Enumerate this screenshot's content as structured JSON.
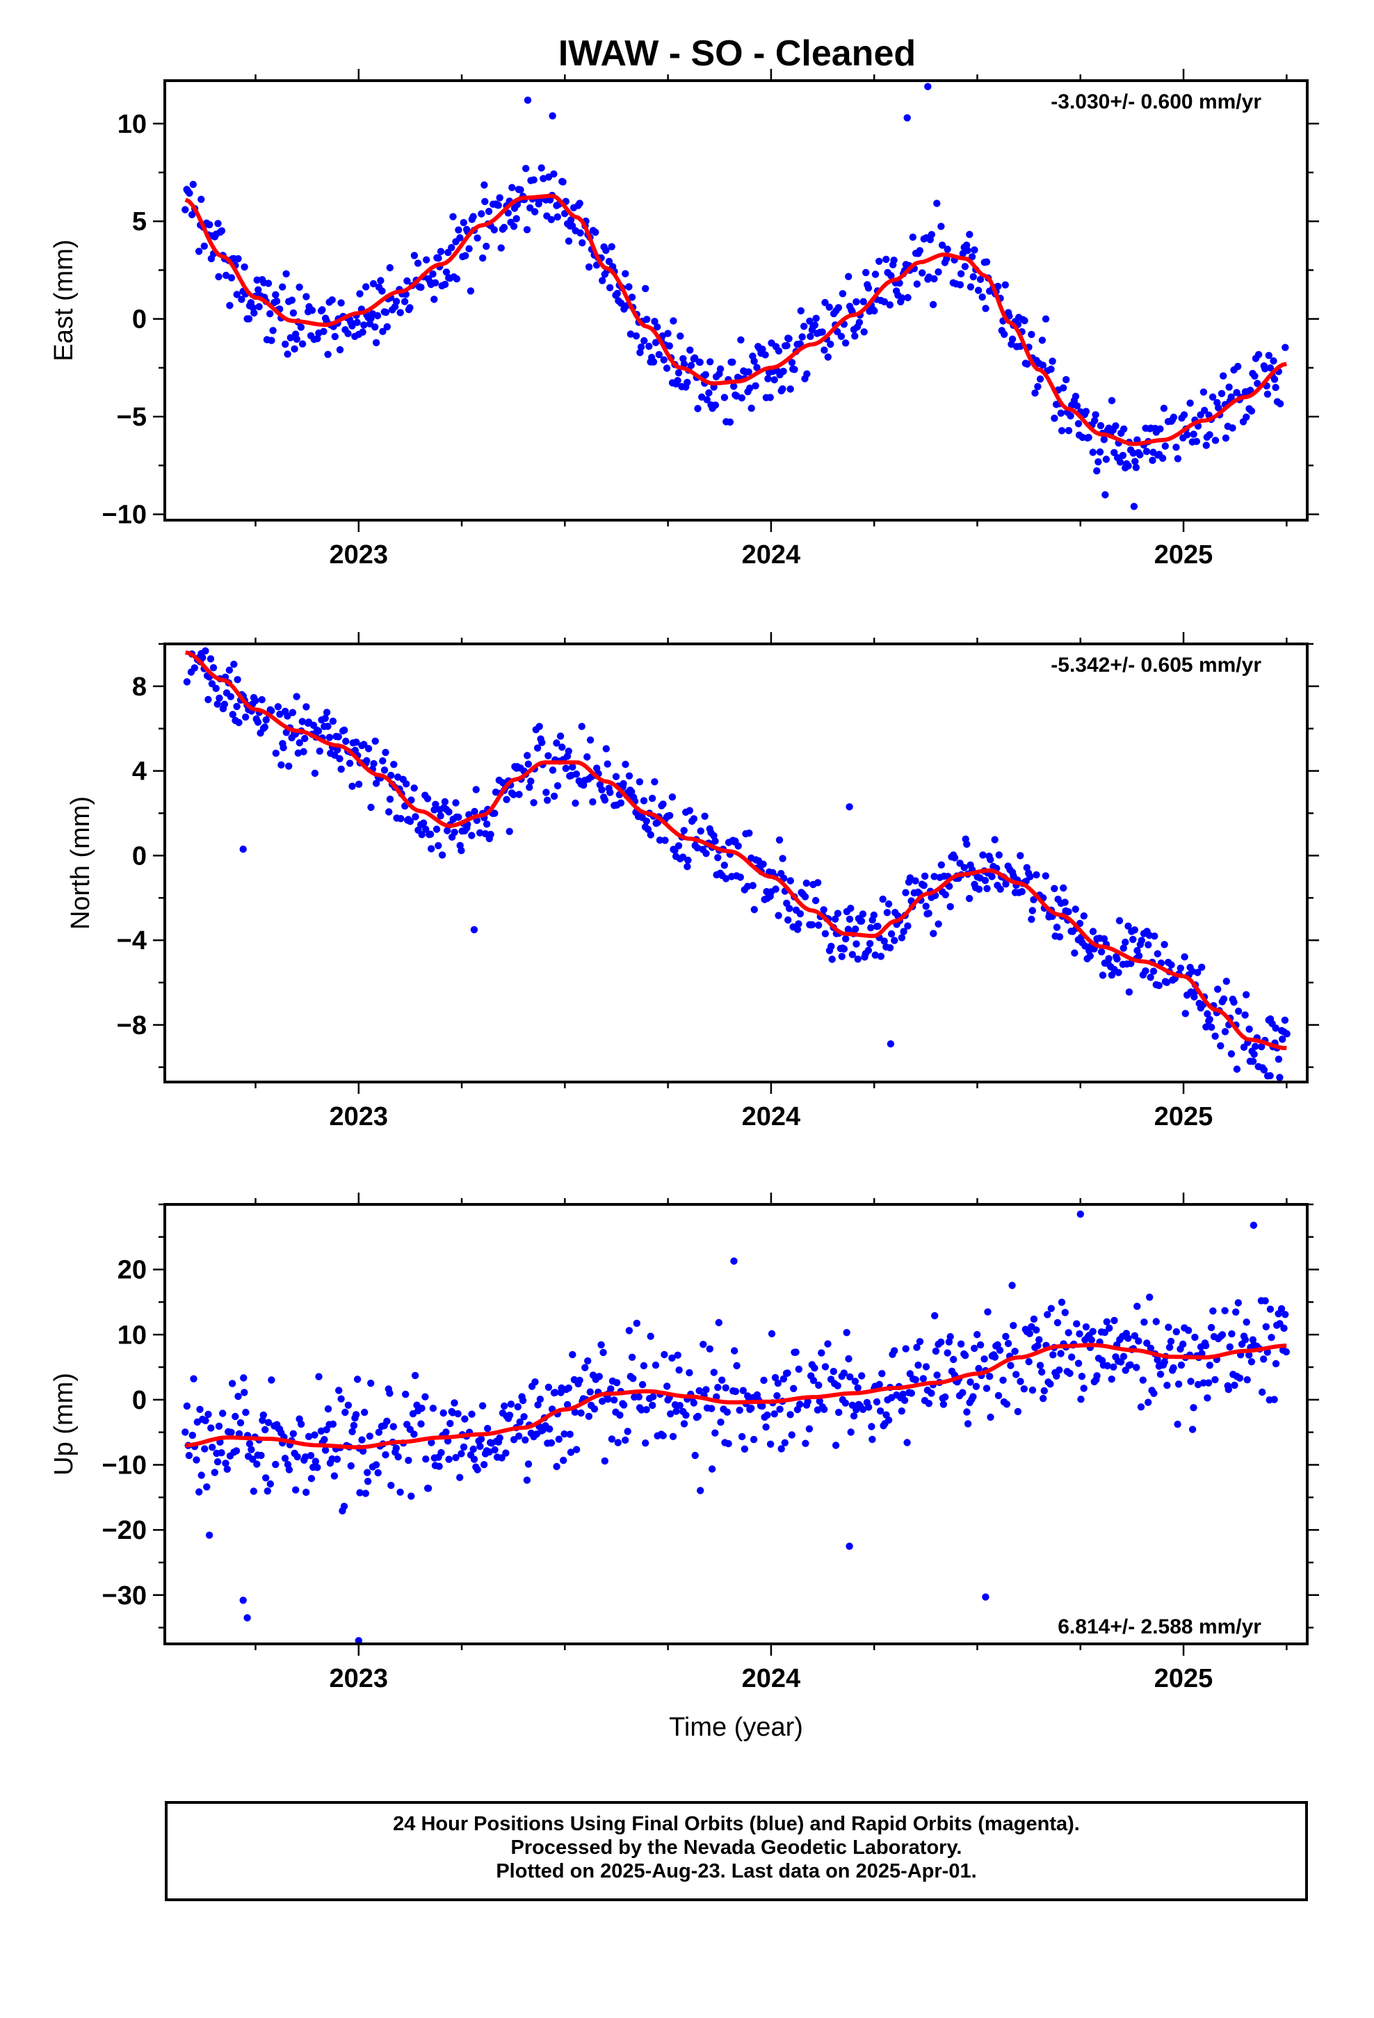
{
  "title": "IWAW  - SO - Cleaned",
  "footer": {
    "line1": "24 Hour Positions Using Final Orbits (blue) and Rapid Orbits (magenta).",
    "line2": "Processed by the Nevada Geodetic Laboratory.",
    "line3": "Plotted on 2025-Aug-23. Last data on 2025-Apr-01."
  },
  "colors": {
    "points": "#0000ff",
    "fit": "#ff0000",
    "axes": "#000000"
  },
  "chart_data": [
    {
      "type": "scatter",
      "ylabel": "East (mm)",
      "rate_label": "-3.030+/- 0.600 mm/yr",
      "rate_position": "top-right",
      "xlim": [
        2022.53,
        2025.3
      ],
      "ylim": [
        -10.3,
        12.2
      ],
      "yticks": [
        -10,
        -5,
        0,
        5,
        10
      ],
      "xticks": [
        2023,
        2024,
        2025
      ],
      "xticklabels": [
        "2023",
        "2024",
        "2025"
      ],
      "data_start": 2022.58,
      "data_end": 2025.25,
      "fit": {
        "x": [
          2022.58,
          2022.67,
          2022.75,
          2022.84,
          2022.92,
          2023.0,
          2023.1,
          2023.2,
          2023.3,
          2023.4,
          2023.47,
          2023.53,
          2023.6,
          2023.7,
          2023.78,
          2023.86,
          2023.92,
          2024.0,
          2024.1,
          2024.2,
          2024.3,
          2024.36,
          2024.42,
          2024.47,
          2024.52,
          2024.58,
          2024.65,
          2024.72,
          2024.8,
          2024.88,
          2024.95,
          2025.05,
          2025.15,
          2025.25
        ],
        "y": [
          6.1,
          3.2,
          1.1,
          -0.1,
          -0.3,
          0.3,
          1.4,
          2.8,
          4.8,
          6.2,
          6.3,
          5.2,
          2.6,
          -0.4,
          -2.5,
          -3.3,
          -3.2,
          -2.5,
          -1.3,
          0.2,
          2.0,
          2.9,
          3.3,
          3.1,
          2.2,
          -0.2,
          -2.6,
          -4.6,
          -5.9,
          -6.4,
          -6.2,
          -5.2,
          -4.0,
          -2.3
        ]
      },
      "noise_sd": 1.3,
      "outliers": [
        {
          "x": 2023.41,
          "y": 11.2
        },
        {
          "x": 2023.47,
          "y": 10.4
        },
        {
          "x": 2024.33,
          "y": 10.3
        },
        {
          "x": 2024.38,
          "y": 11.9
        },
        {
          "x": 2024.88,
          "y": -9.6
        },
        {
          "x": 2024.81,
          "y": -9.0
        }
      ],
      "n_points": 820
    },
    {
      "type": "scatter",
      "ylabel": "North (mm)",
      "rate_label": "-5.342+/- 0.605 mm/yr",
      "rate_position": "top-right",
      "xlim": [
        2022.53,
        2025.3
      ],
      "ylim": [
        -10.7,
        10.0
      ],
      "yticks": [
        -8,
        -4,
        0,
        4,
        8
      ],
      "xticks": [
        2023,
        2024,
        2025
      ],
      "xticklabels": [
        "2023",
        "2024",
        "2025"
      ],
      "data_start": 2022.58,
      "data_end": 2025.25,
      "fit": {
        "x": [
          2022.58,
          2022.67,
          2022.75,
          2022.85,
          2022.95,
          2023.05,
          2023.15,
          2023.22,
          2023.3,
          2023.38,
          2023.45,
          2023.53,
          2023.6,
          2023.7,
          2023.8,
          2023.9,
          2024.0,
          2024.1,
          2024.18,
          2024.25,
          2024.3,
          2024.38,
          2024.46,
          2024.53,
          2024.6,
          2024.7,
          2024.8,
          2024.9,
          2025.0,
          2025.08,
          2025.16,
          2025.25
        ],
        "y": [
          9.6,
          8.3,
          6.9,
          5.9,
          5.2,
          3.8,
          2.1,
          1.4,
          1.9,
          3.6,
          4.4,
          4.4,
          3.5,
          2.0,
          0.8,
          0.2,
          -1.0,
          -2.6,
          -3.7,
          -3.8,
          -3.1,
          -1.8,
          -0.9,
          -0.7,
          -1.3,
          -2.8,
          -4.3,
          -5.0,
          -5.7,
          -7.3,
          -8.7,
          -9.1
        ]
      },
      "noise_sd": 1.1,
      "outliers": [
        {
          "x": 2022.72,
          "y": 0.3
        },
        {
          "x": 2023.28,
          "y": -3.5
        },
        {
          "x": 2024.29,
          "y": -8.9
        },
        {
          "x": 2024.19,
          "y": 2.3
        },
        {
          "x": 2025.21,
          "y": -10.4
        }
      ],
      "n_points": 820
    },
    {
      "type": "scatter",
      "ylabel": "Up (mm)",
      "xlabel": "Time (year)",
      "rate_label": "6.814+/- 2.588 mm/yr",
      "rate_position": "bottom-right",
      "xlim": [
        2022.53,
        2025.3
      ],
      "ylim": [
        -37.5,
        30.0
      ],
      "yticks": [
        -30,
        -20,
        -10,
        0,
        10,
        20
      ],
      "xticks": [
        2023,
        2024,
        2025
      ],
      "xticklabels": [
        "2023",
        "2024",
        "2025"
      ],
      "data_start": 2022.58,
      "data_end": 2025.25,
      "fit": {
        "x": [
          2022.58,
          2022.68,
          2022.78,
          2022.9,
          2023.0,
          2023.1,
          2023.2,
          2023.3,
          2023.4,
          2023.5,
          2023.6,
          2023.7,
          2023.8,
          2023.9,
          2024.0,
          2024.1,
          2024.2,
          2024.3,
          2024.4,
          2024.5,
          2024.6,
          2024.7,
          2024.78,
          2024.88,
          2024.97,
          2025.05,
          2025.15,
          2025.25
        ],
        "y": [
          -7.0,
          -5.8,
          -6.0,
          -7.0,
          -7.3,
          -6.5,
          -5.8,
          -5.3,
          -4.3,
          -1.5,
          0.9,
          1.3,
          0.5,
          -0.4,
          -0.3,
          0.4,
          1.0,
          1.8,
          2.6,
          4.0,
          6.5,
          8.2,
          8.4,
          7.6,
          6.6,
          6.5,
          7.5,
          8.3
        ]
      },
      "noise_sd": 6.0,
      "outliers": [
        {
          "x": 2022.73,
          "y": -33.5
        },
        {
          "x": 2022.72,
          "y": -30.8
        },
        {
          "x": 2023.0,
          "y": -37.0
        },
        {
          "x": 2024.52,
          "y": -30.3
        },
        {
          "x": 2024.75,
          "y": 28.5
        },
        {
          "x": 2025.17,
          "y": 26.8
        },
        {
          "x": 2023.91,
          "y": 21.3
        },
        {
          "x": 2024.19,
          "y": -22.5
        }
      ],
      "n_points": 820
    }
  ]
}
